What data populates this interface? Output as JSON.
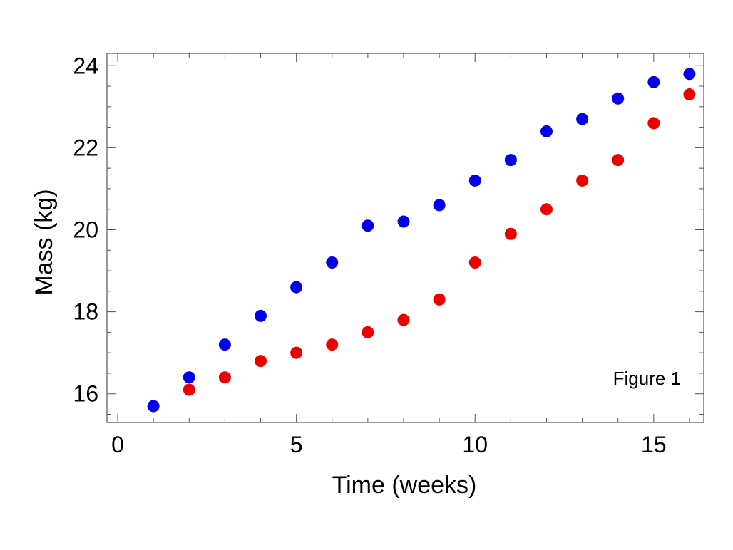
{
  "chart_data": {
    "type": "scatter",
    "title": "",
    "xlabel": "Time (weeks)",
    "ylabel": "Mass (kg)",
    "xlim": [
      -0.3,
      16.4
    ],
    "ylim": [
      15.3,
      24.3
    ],
    "x_ticks": [
      0,
      5,
      10,
      15
    ],
    "y_ticks": [
      16,
      18,
      20,
      22,
      24
    ],
    "grid": false,
    "annotation": "Figure 1",
    "series": [
      {
        "color": "#0000ee",
        "x": [
          1,
          2,
          3,
          4,
          5,
          6,
          7,
          8,
          9,
          10,
          11,
          12,
          13,
          14,
          15,
          16
        ],
        "values": [
          15.7,
          16.4,
          17.2,
          17.9,
          18.6,
          19.2,
          20.1,
          20.2,
          20.6,
          21.2,
          21.7,
          22.4,
          22.7,
          23.2,
          23.6,
          23.8
        ]
      },
      {
        "color": "#ee0000",
        "x": [
          2,
          3,
          4,
          5,
          6,
          7,
          8,
          9,
          10,
          11,
          12,
          13,
          14,
          15,
          16
        ],
        "values": [
          16.1,
          16.4,
          16.8,
          17.0,
          17.2,
          17.5,
          17.8,
          18.3,
          19.2,
          19.9,
          20.5,
          21.2,
          21.7,
          22.6,
          23.3
        ]
      }
    ]
  }
}
